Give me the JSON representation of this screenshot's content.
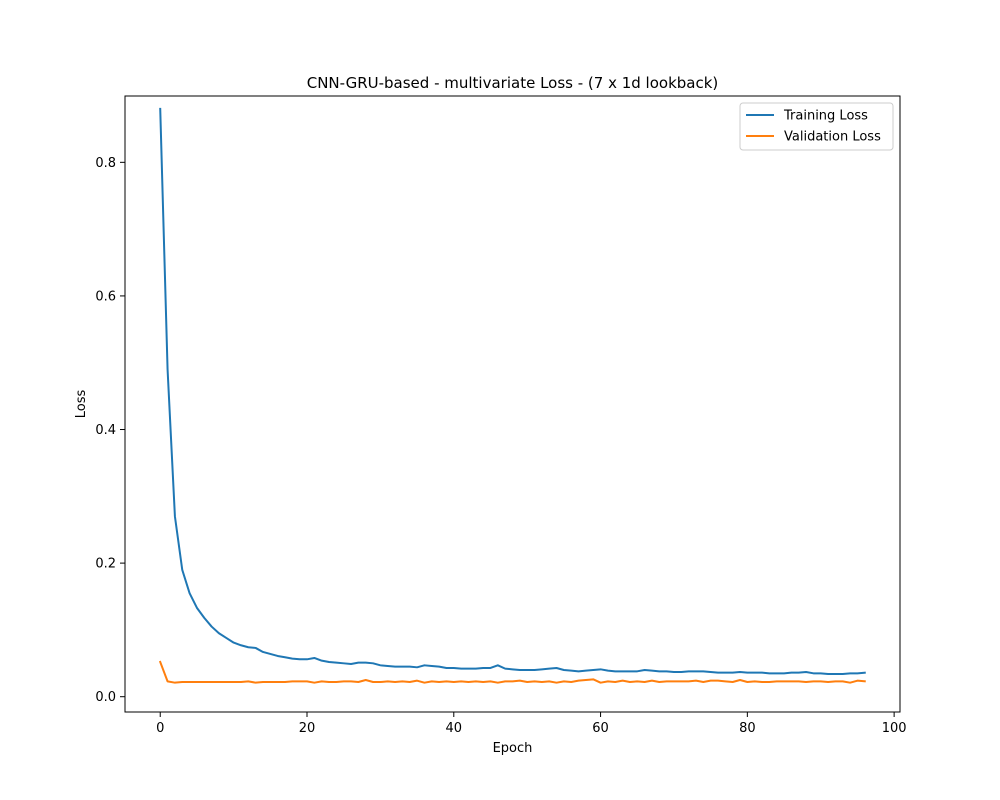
{
  "chart_data": {
    "type": "line",
    "title": "CNN-GRU-based - multivariate Loss - (7 x 1d lookback)",
    "xlabel": "Epoch",
    "ylabel": "Loss",
    "xlim": [
      -4.8,
      100.8
    ],
    "ylim": [
      -0.0229,
      0.8993
    ],
    "xticks": [
      0,
      20,
      40,
      60,
      80,
      100
    ],
    "yticks": [
      0.0,
      0.2,
      0.4,
      0.6,
      0.8
    ],
    "xtick_labels": [
      "0",
      "20",
      "40",
      "60",
      "80",
      "100"
    ],
    "ytick_labels": [
      "0.0",
      "0.2",
      "0.4",
      "0.6",
      "0.8"
    ],
    "grid": false,
    "legend_position": "top-right",
    "x": [
      0,
      1,
      2,
      3,
      4,
      5,
      6,
      7,
      8,
      9,
      10,
      11,
      12,
      13,
      14,
      15,
      16,
      17,
      18,
      19,
      20,
      21,
      22,
      23,
      24,
      25,
      26,
      27,
      28,
      29,
      30,
      31,
      32,
      33,
      34,
      35,
      36,
      37,
      38,
      39,
      40,
      41,
      42,
      43,
      44,
      45,
      46,
      47,
      48,
      49,
      50,
      51,
      52,
      53,
      54,
      55,
      56,
      57,
      58,
      59,
      60,
      61,
      62,
      63,
      64,
      65,
      66,
      67,
      68,
      69,
      70,
      71,
      72,
      73,
      74,
      75,
      76,
      77,
      78,
      79,
      80,
      81,
      82,
      83,
      84,
      85,
      86,
      87,
      88,
      89,
      90,
      91,
      92,
      93,
      94,
      95,
      96
    ],
    "series": [
      {
        "name": "Training Loss",
        "color": "#1f77b4",
        "values": [
          0.88,
          0.49,
          0.27,
          0.19,
          0.155,
          0.133,
          0.118,
          0.105,
          0.095,
          0.088,
          0.081,
          0.077,
          0.074,
          0.073,
          0.067,
          0.064,
          0.061,
          0.059,
          0.057,
          0.056,
          0.056,
          0.058,
          0.054,
          0.052,
          0.051,
          0.05,
          0.049,
          0.051,
          0.051,
          0.05,
          0.047,
          0.046,
          0.045,
          0.045,
          0.045,
          0.044,
          0.047,
          0.046,
          0.045,
          0.043,
          0.043,
          0.042,
          0.042,
          0.042,
          0.043,
          0.043,
          0.047,
          0.042,
          0.041,
          0.04,
          0.04,
          0.04,
          0.041,
          0.042,
          0.043,
          0.04,
          0.039,
          0.038,
          0.039,
          0.04,
          0.041,
          0.039,
          0.038,
          0.038,
          0.038,
          0.038,
          0.04,
          0.039,
          0.038,
          0.038,
          0.037,
          0.037,
          0.038,
          0.038,
          0.038,
          0.037,
          0.036,
          0.036,
          0.036,
          0.037,
          0.036,
          0.036,
          0.036,
          0.035,
          0.035,
          0.035,
          0.036,
          0.036,
          0.037,
          0.035,
          0.035,
          0.034,
          0.034,
          0.034,
          0.035,
          0.035,
          0.036
        ]
      },
      {
        "name": "Validation Loss",
        "color": "#ff7f0e",
        "values": [
          0.052,
          0.023,
          0.021,
          0.022,
          0.022,
          0.022,
          0.022,
          0.022,
          0.022,
          0.022,
          0.022,
          0.022,
          0.023,
          0.021,
          0.022,
          0.022,
          0.022,
          0.022,
          0.023,
          0.023,
          0.023,
          0.021,
          0.023,
          0.022,
          0.022,
          0.023,
          0.023,
          0.022,
          0.025,
          0.022,
          0.022,
          0.023,
          0.022,
          0.023,
          0.022,
          0.024,
          0.021,
          0.023,
          0.022,
          0.023,
          0.022,
          0.023,
          0.022,
          0.023,
          0.022,
          0.023,
          0.021,
          0.023,
          0.023,
          0.024,
          0.022,
          0.023,
          0.022,
          0.023,
          0.021,
          0.023,
          0.022,
          0.024,
          0.025,
          0.026,
          0.021,
          0.023,
          0.022,
          0.024,
          0.022,
          0.023,
          0.022,
          0.024,
          0.022,
          0.023,
          0.023,
          0.023,
          0.023,
          0.024,
          0.022,
          0.024,
          0.024,
          0.023,
          0.022,
          0.025,
          0.022,
          0.023,
          0.022,
          0.022,
          0.023,
          0.023,
          0.023,
          0.023,
          0.022,
          0.023,
          0.023,
          0.022,
          0.023,
          0.023,
          0.021,
          0.024,
          0.023
        ]
      }
    ]
  }
}
